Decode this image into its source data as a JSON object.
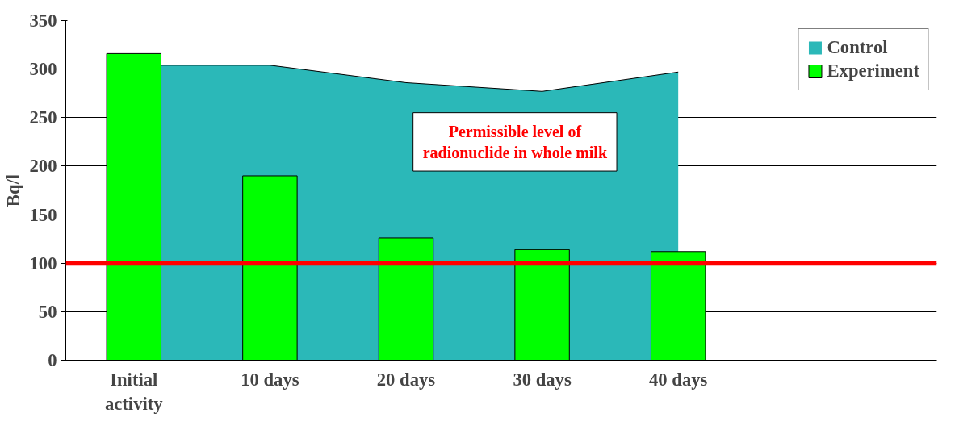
{
  "chart_data": {
    "type": "bar",
    "ylabel": "Bq/l",
    "categories": [
      "Initial activity",
      "10 days",
      "20 days",
      "30 days",
      "40 days"
    ],
    "series": [
      {
        "name": "Control",
        "type": "area",
        "color": "#2bb8b8",
        "values": [
          304,
          304,
          286,
          277,
          297
        ]
      },
      {
        "name": "Experiment",
        "color": "#00ff00",
        "values": [
          316,
          190,
          126,
          114,
          112
        ]
      }
    ],
    "ylim": [
      0,
      350
    ],
    "yticks": [
      0,
      50,
      100,
      150,
      200,
      250,
      300,
      350
    ],
    "grid": "y",
    "legend": "top right",
    "ref_lines": [
      {
        "axis": "y",
        "value": 100,
        "color": "#ff0000"
      }
    ],
    "annotations": [
      "Permissible level of radionuclide in whole milk"
    ]
  }
}
